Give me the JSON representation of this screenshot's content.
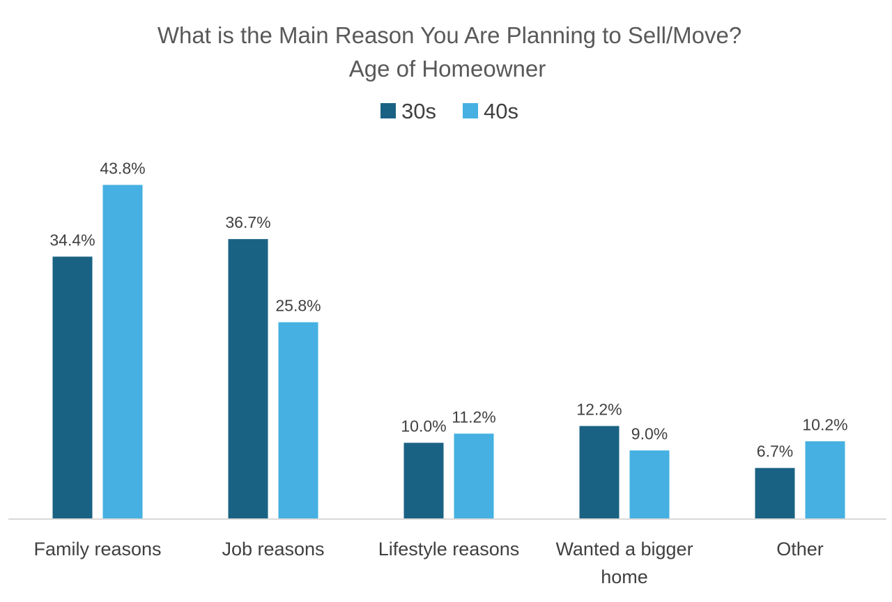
{
  "chart_data": {
    "type": "bar",
    "title": "What is the Main Reason You Are Planning to Sell/Move?",
    "subtitle": "Age of Homeowner",
    "categories": [
      [
        "Family reasons"
      ],
      [
        "Job reasons"
      ],
      [
        "Lifestyle reasons"
      ],
      [
        "Wanted a bigger",
        "home"
      ],
      [
        "Other"
      ]
    ],
    "series": [
      {
        "name": "30s",
        "color": "#1a6283",
        "values": [
          34.4,
          36.7,
          10.0,
          12.2,
          6.7
        ],
        "labels": [
          "34.4%",
          "36.7%",
          "10.0%",
          "12.2%",
          "6.7%"
        ]
      },
      {
        "name": "40s",
        "color": "#45b0e1",
        "values": [
          43.8,
          25.8,
          11.2,
          9.0,
          10.2
        ],
        "labels": [
          "43.8%",
          "25.8%",
          "11.2%",
          "9.0%",
          "10.2%"
        ]
      }
    ],
    "ylim": [
      0,
      50
    ],
    "grid": false,
    "legend_position": "top",
    "xlabel": "",
    "ylabel": ""
  }
}
